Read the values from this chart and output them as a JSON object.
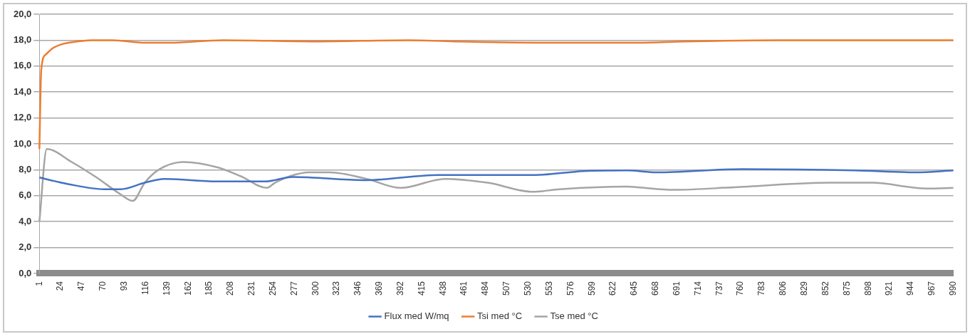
{
  "chart_data": {
    "type": "line",
    "grid": "y",
    "legend": "bottom",
    "xlim": [
      1,
      990
    ],
    "xticks": [
      1,
      24,
      47,
      70,
      93,
      116,
      139,
      162,
      185,
      208,
      231,
      254,
      277,
      300,
      323,
      346,
      369,
      392,
      415,
      438,
      461,
      484,
      507,
      530,
      553,
      576,
      599,
      622,
      645,
      668,
      691,
      714,
      737,
      760,
      783,
      806,
      829,
      852,
      875,
      898,
      921,
      944,
      967,
      990
    ],
    "ylim": [
      0,
      20
    ],
    "yticks": [
      {
        "value": 0,
        "label": "0,0"
      },
      {
        "value": 2,
        "label": "2,0"
      },
      {
        "value": 4,
        "label": "4,0"
      },
      {
        "value": 6,
        "label": "6,0"
      },
      {
        "value": 8,
        "label": "8,0"
      },
      {
        "value": 10,
        "label": "10,0"
      },
      {
        "value": 12,
        "label": "12,0"
      },
      {
        "value": 14,
        "label": "14,0"
      },
      {
        "value": 16,
        "label": "16,0"
      },
      {
        "value": 18,
        "label": "18,0"
      },
      {
        "value": 20,
        "label": "20,0"
      }
    ],
    "series": [
      {
        "name": "Flux med W/mq",
        "color": "#4472c4",
        "x": [
          1,
          32,
          71,
          89,
          115,
          136,
          193,
          246,
          275,
          355,
          433,
          538,
          590,
          637,
          669,
          761,
          883,
          949,
          990
        ],
        "values": [
          7.4,
          6.9,
          6.5,
          6.5,
          7.0,
          7.3,
          7.1,
          7.1,
          7.45,
          7.2,
          7.6,
          7.6,
          7.9,
          7.95,
          7.8,
          8.05,
          7.95,
          7.8,
          7.95
        ]
      },
      {
        "name": "Tsi med °C",
        "color": "#ed7d31",
        "x": [
          1,
          3,
          8,
          16,
          26,
          42,
          57,
          80,
          115,
          140,
          200,
          300,
          400,
          450,
          560,
          650,
          700,
          800,
          900,
          990
        ],
        "values": [
          9.6,
          15.7,
          16.9,
          17.4,
          17.7,
          17.9,
          18.0,
          18.0,
          17.8,
          17.8,
          18.0,
          17.9,
          18.0,
          17.9,
          17.8,
          17.8,
          17.9,
          18.0,
          18.0,
          18.0
        ]
      },
      {
        "name": "Tse med °C",
        "color": "#a5a5a5",
        "x": [
          1,
          9,
          36,
          63,
          89,
          102,
          115,
          130,
          157,
          193,
          219,
          247,
          256,
          272,
          293,
          315,
          355,
          392,
          440,
          486,
          535,
          564,
          637,
          648,
          687,
          753,
          857,
          902,
          961,
          990
        ],
        "values": [
          4.0,
          9.6,
          8.6,
          7.4,
          6.1,
          5.6,
          7.0,
          8.0,
          8.6,
          8.2,
          7.5,
          6.6,
          7.0,
          7.5,
          7.8,
          7.8,
          7.3,
          6.6,
          7.3,
          7.0,
          6.3,
          6.5,
          6.7,
          6.65,
          6.45,
          6.65,
          7.0,
          7.0,
          6.55,
          6.6
        ]
      }
    ]
  }
}
